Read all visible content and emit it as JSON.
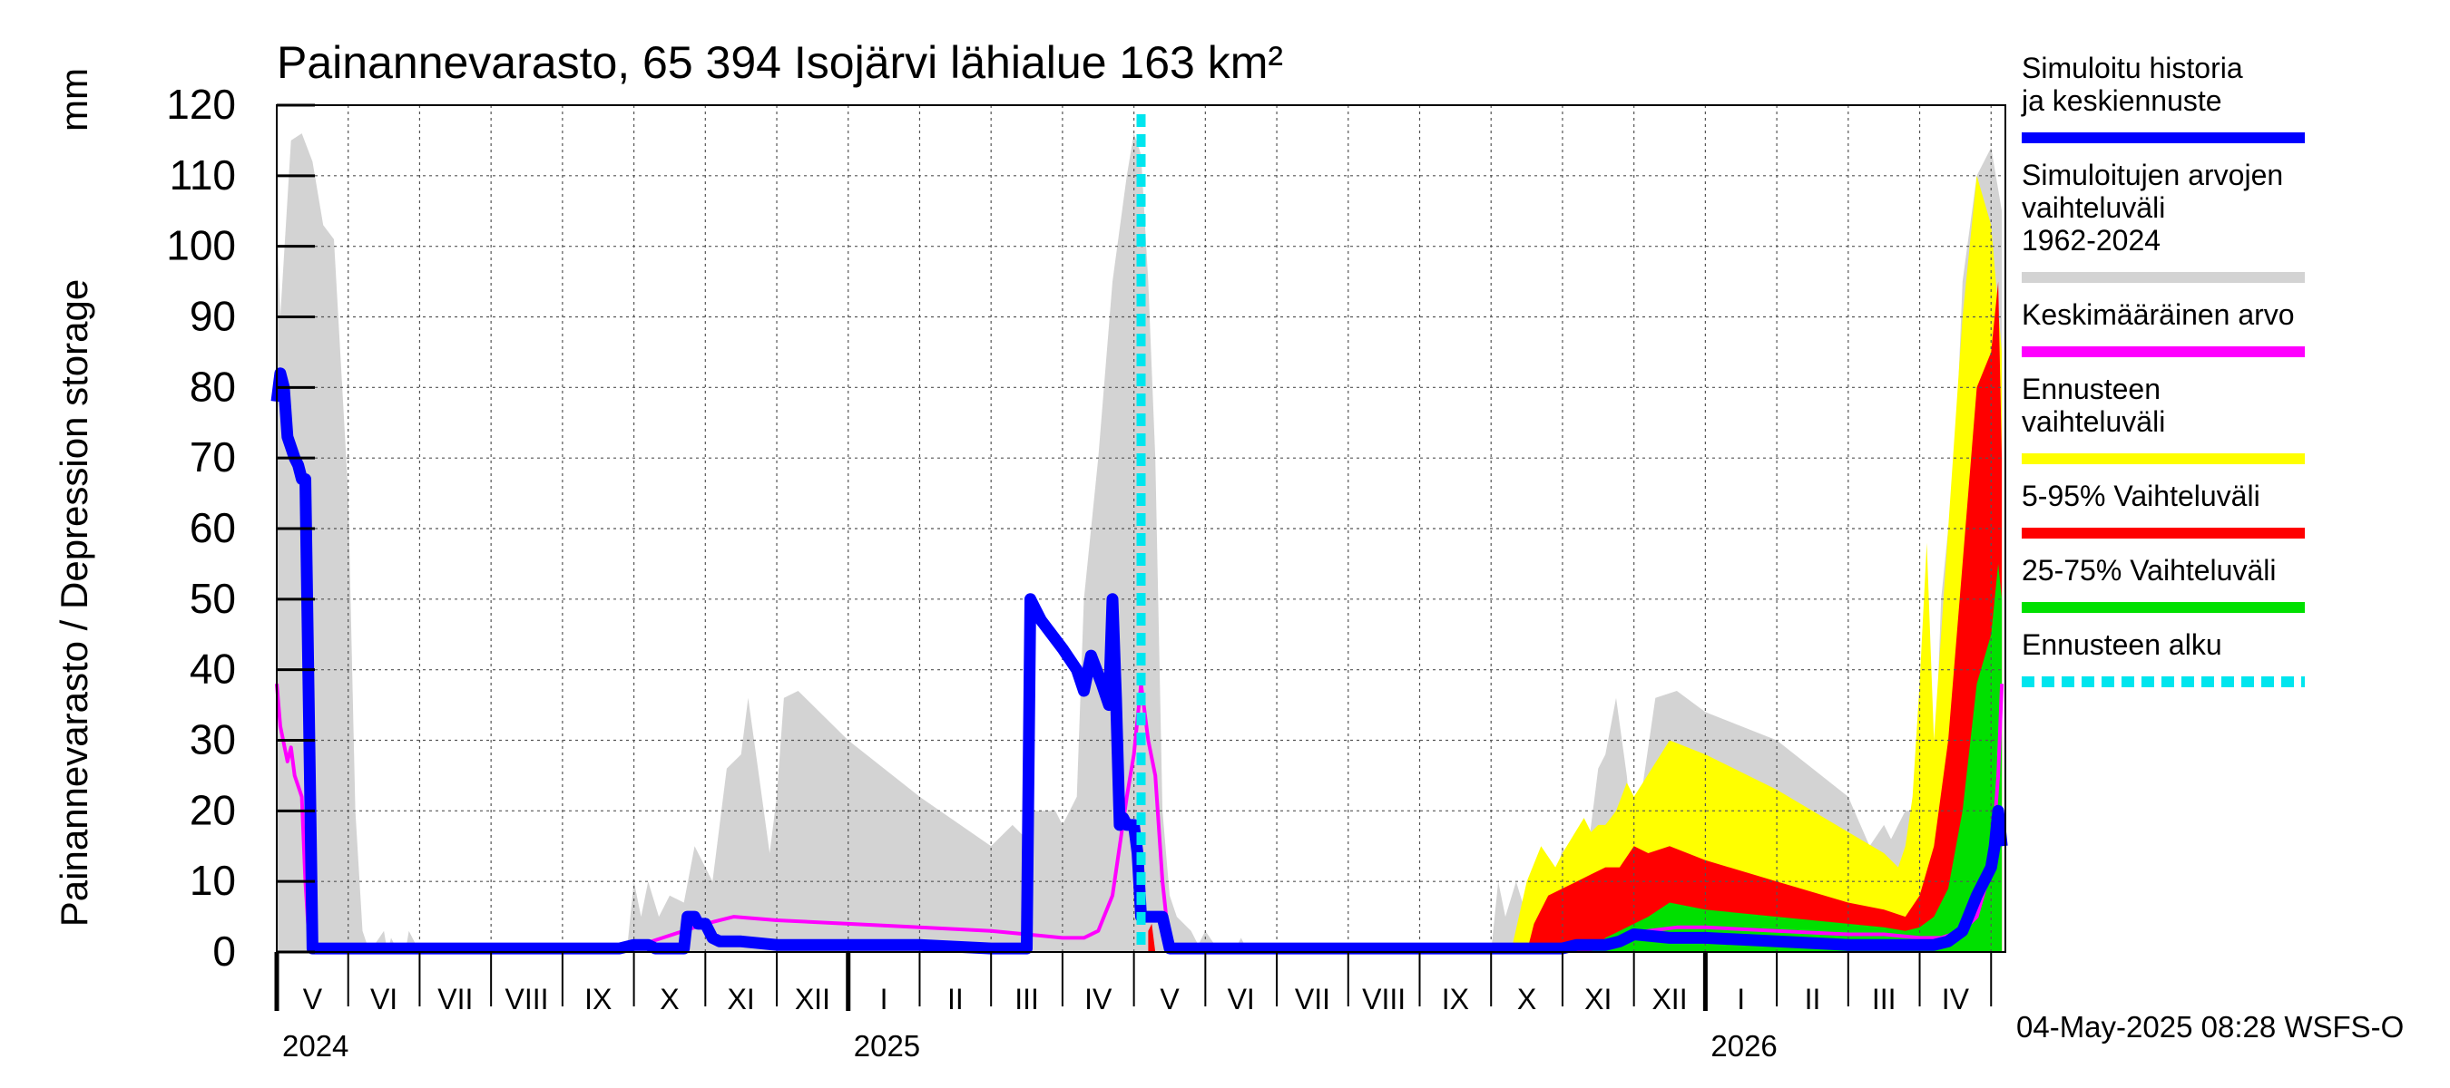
{
  "chart_data": {
    "type": "area",
    "title": "Painannevarasto, 65 394 Isojärvi lähialue 163 km²",
    "ylabel": "Painannevarasto / Depression storage",
    "yunit": "mm",
    "ylim": [
      0,
      120
    ],
    "yticks": [
      "0",
      "10",
      "20",
      "30",
      "40",
      "50",
      "60",
      "70",
      "80",
      "90",
      "100",
      "110",
      "120"
    ],
    "grid": true,
    "x_month_labels": [
      {
        "label": "V",
        "month": 0.5
      },
      {
        "label": "VI",
        "month": 1.5
      },
      {
        "label": "VII",
        "month": 2.5
      },
      {
        "label": "VIII",
        "month": 3.5
      },
      {
        "label": "IX",
        "month": 4.5
      },
      {
        "label": "X",
        "month": 5.5
      },
      {
        "label": "XI",
        "month": 6.5
      },
      {
        "label": "XII",
        "month": 7.5
      },
      {
        "label": "I",
        "month": 8.5
      },
      {
        "label": "II",
        "month": 9.5
      },
      {
        "label": "III",
        "month": 10.5
      },
      {
        "label": "IV",
        "month": 11.5
      },
      {
        "label": "V",
        "month": 12.5
      },
      {
        "label": "VI",
        "month": 13.5
      },
      {
        "label": "VII",
        "month": 14.5
      },
      {
        "label": "VIII",
        "month": 15.5
      },
      {
        "label": "IX",
        "month": 16.5
      },
      {
        "label": "X",
        "month": 17.5
      },
      {
        "label": "XI",
        "month": 18.5
      },
      {
        "label": "XII",
        "month": 19.5
      },
      {
        "label": "I",
        "month": 20.5
      },
      {
        "label": "II",
        "month": 21.5
      },
      {
        "label": "III",
        "month": 22.5
      },
      {
        "label": "IV",
        "month": 23.5
      }
    ],
    "x_year_labels": [
      {
        "label": "2024",
        "month": 0
      },
      {
        "label": "2025",
        "month": 8
      },
      {
        "label": "2026",
        "month": 20
      }
    ],
    "x_range_months": [
      0,
      24.2
    ],
    "forecast_start_month": 12.1,
    "footer": "04-May-2025 08:28 WSFS-O",
    "legend": [
      {
        "label": "Simuloitu historia ja keskiennuste",
        "color": "#0000ff"
      },
      {
        "label": "Simuloitujen arvojen vaihteluväli 1962-2024",
        "color": "#d3d3d3"
      },
      {
        "label": "Keskimääräinen arvo",
        "color": "#ff00ff"
      },
      {
        "label": "Ennusteen vaihteluväli",
        "color": "#ffff00"
      },
      {
        "label": "5-95% Vaihteluväli",
        "color": "#ff0000"
      },
      {
        "label": "25-75% Vaihteluväli",
        "color": "#00e000"
      },
      {
        "label": "Ennusteen alku",
        "color": "#00e5ee"
      }
    ],
    "series": [
      {
        "name": "Simuloitujen arvojen vaihteluväli 1962-2024",
        "kind": "band",
        "x": [
          0,
          0.05,
          0.2,
          0.35,
          0.5,
          0.65,
          0.8,
          1.0,
          1.1,
          1.2,
          1.3,
          1.5,
          1.55,
          1.6,
          1.7,
          1.8,
          1.85,
          2.0,
          4.9,
          5.0,
          5.1,
          5.2,
          5.35,
          5.5,
          5.7,
          5.85,
          6.0,
          6.1,
          6.3,
          6.5,
          6.6,
          6.75,
          6.9,
          7.0,
          7.1,
          7.3,
          7.6,
          8.0,
          9.0,
          10.0,
          10.3,
          10.5,
          10.6,
          10.9,
          11.0,
          11.2,
          11.3,
          11.5,
          11.7,
          11.9,
          12.0,
          12.1,
          12.2,
          12.3,
          12.4,
          12.5,
          12.6,
          12.8,
          12.9,
          13.0,
          13.2,
          13.4,
          13.5,
          13.6,
          17.0,
          17.1,
          17.2,
          17.35,
          17.5,
          17.7,
          17.85,
          18.0,
          18.1,
          18.3,
          18.5,
          18.6,
          18.75,
          18.9,
          19.0,
          19.1,
          19.3,
          19.6,
          20.0,
          21.0,
          22.0,
          22.3,
          22.5,
          22.6,
          22.8,
          22.9,
          23.0,
          23.2,
          23.3,
          23.5,
          23.6,
          23.8,
          24.0,
          24.15
        ],
        "high": [
          104,
          90,
          115,
          116,
          112,
          103,
          101,
          65,
          20,
          3,
          0,
          3,
          0,
          2,
          0,
          0,
          3,
          0,
          0,
          10,
          5,
          10,
          5,
          8,
          7,
          15,
          12,
          10,
          26,
          28,
          36,
          25,
          14,
          22,
          36,
          37,
          34,
          30,
          22,
          15,
          18,
          16,
          20,
          20,
          18,
          22,
          50,
          70,
          95,
          110,
          116,
          113,
          95,
          70,
          20,
          8,
          5,
          3,
          1,
          3,
          0,
          0,
          2,
          0,
          0,
          10,
          5,
          10,
          5,
          8,
          7,
          15,
          12,
          10,
          26,
          28,
          36,
          25,
          14,
          22,
          36,
          37,
          34,
          30,
          22,
          15,
          18,
          16,
          20,
          20,
          18,
          22,
          50,
          70,
          95,
          110,
          114,
          105
        ],
        "low": [
          0,
          0,
          0,
          0,
          0,
          0,
          0,
          0,
          0,
          0,
          0,
          0,
          0,
          0,
          0,
          0,
          0,
          0,
          0,
          0,
          0,
          0,
          0,
          0,
          0,
          0,
          0,
          0,
          0,
          0,
          0,
          0,
          0,
          0,
          0,
          0,
          0,
          0,
          0,
          0,
          0,
          0,
          0,
          0,
          0,
          0,
          0,
          0,
          0,
          0,
          0,
          0,
          0,
          0,
          0,
          0,
          0,
          0,
          0,
          0,
          0,
          0,
          0,
          0,
          0,
          0,
          0,
          0,
          0,
          0,
          0,
          0,
          0,
          0,
          0,
          0,
          0,
          0,
          0,
          0,
          0,
          0,
          0,
          0,
          0,
          0,
          0,
          0,
          0,
          0,
          0,
          0,
          0,
          0,
          0,
          0,
          0,
          0
        ]
      },
      {
        "name": "Ennusteen vaihteluväli",
        "kind": "band",
        "x": [
          17.3,
          17.5,
          17.7,
          17.9,
          18.0,
          18.3,
          18.4,
          18.5,
          18.6,
          18.75,
          18.9,
          19.0,
          19.5,
          20.0,
          21.0,
          22.0,
          22.5,
          22.7,
          22.8,
          22.9,
          23.0,
          23.1,
          23.2,
          23.4,
          23.6,
          23.8,
          24.0,
          24.15
        ],
        "high": [
          1,
          10,
          15,
          12,
          14,
          19,
          17,
          18,
          18,
          20,
          24,
          22,
          30,
          28,
          23,
          17,
          14,
          12,
          15,
          22,
          38,
          58,
          30,
          60,
          90,
          110,
          103,
          85
        ],
        "low": [
          0,
          0,
          0,
          0,
          0,
          0,
          0,
          0,
          0,
          0,
          0,
          0,
          0,
          0,
          0,
          0,
          0,
          0,
          0,
          0,
          0,
          0,
          0,
          0,
          0,
          0,
          0,
          0
        ]
      },
      {
        "name": "5-95% Vaihteluväli",
        "kind": "band",
        "x": [
          12.2,
          12.25,
          12.3,
          17.5,
          17.6,
          17.8,
          18.0,
          18.2,
          18.4,
          18.6,
          18.8,
          19.0,
          19.2,
          19.5,
          20.0,
          21.0,
          22.0,
          22.5,
          22.8,
          23.0,
          23.2,
          23.4,
          23.6,
          23.8,
          24.0,
          24.1,
          24.15
        ],
        "high": [
          3,
          4,
          0,
          0,
          4,
          8,
          9,
          10,
          11,
          12,
          12,
          15,
          14,
          15,
          13,
          10,
          7,
          6,
          5,
          8,
          15,
          30,
          55,
          80,
          85,
          95,
          70
        ],
        "low": [
          0,
          0,
          0,
          0,
          0,
          0,
          0,
          0,
          0,
          0,
          0,
          0,
          0,
          0,
          0,
          0,
          0,
          0,
          0,
          0,
          0,
          0,
          0,
          0,
          0,
          0,
          0
        ]
      },
      {
        "name": "25-75% Vaihteluväli",
        "kind": "band",
        "x": [
          18.4,
          18.6,
          18.8,
          19.0,
          19.2,
          19.5,
          20.0,
          21.0,
          22.0,
          22.5,
          22.8,
          23.0,
          23.2,
          23.4,
          23.6,
          23.8,
          24.0,
          24.1,
          24.15
        ],
        "high": [
          0,
          2,
          3,
          4,
          5,
          7,
          6,
          5,
          4,
          3.5,
          3,
          3.5,
          5,
          9,
          20,
          38,
          45,
          55,
          50
        ],
        "low": [
          0,
          0,
          0,
          0,
          0,
          0,
          0,
          0,
          0,
          0,
          0,
          0,
          0,
          0,
          0,
          0,
          0,
          0,
          0
        ]
      },
      {
        "name": "Keskimääräinen arvo",
        "kind": "line",
        "x": [
          0,
          0.05,
          0.15,
          0.2,
          0.25,
          0.35,
          0.4,
          0.45,
          0.5,
          0.55,
          0.6,
          1.0,
          4.9,
          5.1,
          5.4,
          5.7,
          6.0,
          6.4,
          7.0,
          8.0,
          9.0,
          10.0,
          10.5,
          11.0,
          11.3,
          11.5,
          11.7,
          11.8,
          11.9,
          12.0,
          12.1,
          12.2,
          12.3,
          12.4,
          12.5,
          13.0,
          17.0,
          17.5,
          18.0,
          18.4,
          18.8,
          19.2,
          19.6,
          20.0,
          21.0,
          22.0,
          22.5,
          23.0,
          23.3,
          23.6,
          23.8,
          24.0,
          24.1,
          24.15
        ],
        "y": [
          38,
          32,
          27,
          29,
          25,
          22,
          10,
          2,
          1,
          0.5,
          0.5,
          0.5,
          0.5,
          1,
          2,
          3,
          4,
          5,
          4.5,
          4,
          3.5,
          3,
          2.5,
          2,
          2,
          3,
          8,
          15,
          22,
          28,
          38,
          30,
          25,
          10,
          0.5,
          0.5,
          0.5,
          0.5,
          0.5,
          1,
          2,
          3,
          3.5,
          3.5,
          3,
          2.5,
          2.5,
          2,
          2,
          3,
          5,
          12,
          25,
          38
        ]
      },
      {
        "name": "Simuloitu historia ja keskiennuste",
        "kind": "line",
        "x": [
          0,
          0.05,
          0.1,
          0.15,
          0.25,
          0.3,
          0.35,
          0.4,
          0.5,
          1.0,
          4.8,
          5.0,
          5.1,
          5.2,
          5.3,
          5.5,
          5.7,
          5.75,
          5.85,
          5.9,
          6.0,
          6.1,
          6.2,
          6.5,
          7.0,
          8.0,
          9.0,
          10.0,
          10.5,
          10.55,
          10.6,
          10.7,
          11.0,
          11.2,
          11.3,
          11.4,
          11.55,
          11.65,
          11.7,
          11.75,
          11.8,
          11.85,
          11.9,
          12.0,
          12.05,
          12.1,
          12.2,
          12.3,
          12.4,
          12.5,
          13.0,
          17.0,
          17.5,
          18.0,
          18.2,
          18.4,
          18.6,
          18.8,
          19.0,
          19.5,
          20.0,
          21.0,
          22.0,
          22.5,
          23.0,
          23.2,
          23.4,
          23.6,
          23.8,
          24.0,
          24.05,
          24.1,
          24.15
        ],
        "y": [
          78,
          82,
          80,
          73,
          70,
          69,
          67,
          67,
          0.5,
          0.5,
          0.5,
          1,
          1,
          1,
          0.5,
          0.5,
          0.5,
          5,
          5,
          4,
          4,
          2,
          1.5,
          1.5,
          1,
          1,
          1,
          0.5,
          0.5,
          50,
          49,
          47,
          43,
          40,
          37,
          42,
          38,
          35,
          50,
          36,
          18,
          19,
          18,
          18,
          14,
          5,
          5,
          5,
          5,
          0.5,
          0.5,
          0.5,
          0.5,
          0.5,
          1,
          1,
          1,
          1.5,
          2.5,
          2,
          2,
          1.5,
          1,
          1,
          1,
          1,
          1.5,
          3,
          8,
          12,
          15,
          20,
          15
        ]
      }
    ]
  }
}
